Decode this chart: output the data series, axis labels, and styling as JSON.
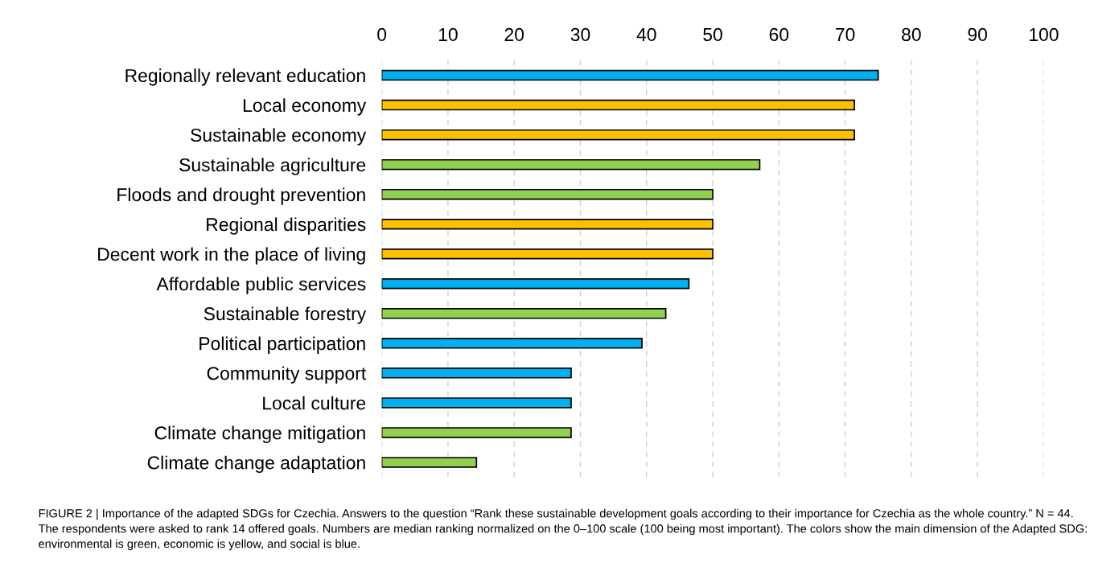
{
  "chart_data": {
    "type": "bar",
    "orientation": "horizontal",
    "categories": [
      "Regionally relevant education",
      "Local economy",
      "Sustainable economy",
      "Sustainable agriculture",
      "Floods and drought prevention",
      "Regional disparities",
      "Decent work in the place of living",
      "Affordable public services",
      "Sustainable forestry",
      "Political participation",
      "Community support",
      "Local culture",
      "Climate change mitigation",
      "Climate change adaptation"
    ],
    "values": [
      75,
      71.4,
      71.4,
      57.1,
      50,
      50,
      50,
      46.4,
      42.9,
      39.3,
      28.6,
      28.6,
      28.6,
      14.3
    ],
    "colors": [
      "#00b0f0",
      "#ffc000",
      "#ffc000",
      "#92d050",
      "#92d050",
      "#ffc000",
      "#ffc000",
      "#00b0f0",
      "#92d050",
      "#00b0f0",
      "#00b0f0",
      "#00b0f0",
      "#92d050",
      "#92d050"
    ],
    "xlim": [
      0,
      100
    ],
    "xticks": [
      0,
      10,
      20,
      30,
      40,
      50,
      60,
      70,
      80,
      90,
      100
    ],
    "grid": "x",
    "annotations": [
      "FIGURE 2 | Importance of the adapted SDGs for Czechia. Answers to the question “Rank these sustainable development goals according to their importance for Czechia as the whole country.” N = 44. The respondents were asked to rank 14 offered goals. Numbers are median ranking normalized on the 0–100 scale (100 being most important). The colors show the main dimension of the Adapted SDG: environmental is green, economic is yellow, and social is blue."
    ]
  }
}
